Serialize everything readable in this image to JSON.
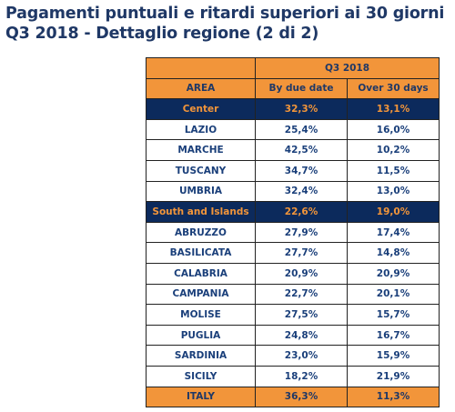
{
  "title": {
    "line1": "Pagamenti puntuali e ritardi superiori ai 30 giorni",
    "line2": "Q3 2018 - Dettaglio regione (2 di 2)"
  },
  "table": {
    "period": "Q3 2018",
    "columns": [
      "AREA",
      "By due date",
      "Over 30 days"
    ],
    "rows": [
      {
        "type": "macro",
        "area": "Center",
        "by_due_date": "32,3%",
        "over_30_days": "13,1%"
      },
      {
        "type": "region",
        "area": "LAZIO",
        "by_due_date": "25,4%",
        "over_30_days": "16,0%"
      },
      {
        "type": "region",
        "area": "MARCHE",
        "by_due_date": "42,5%",
        "over_30_days": "10,2%"
      },
      {
        "type": "region",
        "area": "TUSCANY",
        "by_due_date": "34,7%",
        "over_30_days": "11,5%"
      },
      {
        "type": "region",
        "area": "UMBRIA",
        "by_due_date": "32,4%",
        "over_30_days": "13,0%"
      },
      {
        "type": "macro",
        "area": "South and Islands",
        "by_due_date": "22,6%",
        "over_30_days": "19,0%"
      },
      {
        "type": "region",
        "area": "ABRUZZO",
        "by_due_date": "27,9%",
        "over_30_days": "17,4%"
      },
      {
        "type": "region",
        "area": "BASILICATA",
        "by_due_date": "27,7%",
        "over_30_days": "14,8%"
      },
      {
        "type": "region",
        "area": "CALABRIA",
        "by_due_date": "20,9%",
        "over_30_days": "20,9%"
      },
      {
        "type": "region",
        "area": "CAMPANIA",
        "by_due_date": "22,7%",
        "over_30_days": "20,1%"
      },
      {
        "type": "region",
        "area": "MOLISE",
        "by_due_date": "27,5%",
        "over_30_days": "15,7%"
      },
      {
        "type": "region",
        "area": "PUGLIA",
        "by_due_date": "24,8%",
        "over_30_days": "16,7%"
      },
      {
        "type": "region",
        "area": "SARDINIA",
        "by_due_date": "23,0%",
        "over_30_days": "15,9%"
      },
      {
        "type": "region",
        "area": "SICILY",
        "by_due_date": "18,2%",
        "over_30_days": "21,9%"
      },
      {
        "type": "total",
        "area": "ITALY",
        "by_due_date": "36,3%",
        "over_30_days": "11,3%"
      }
    ]
  },
  "colors": {
    "title": "#1f3866",
    "header_orange": "#f2953a",
    "macro_navy": "#0c2a5c",
    "cell_text": "#1a3f7a"
  }
}
